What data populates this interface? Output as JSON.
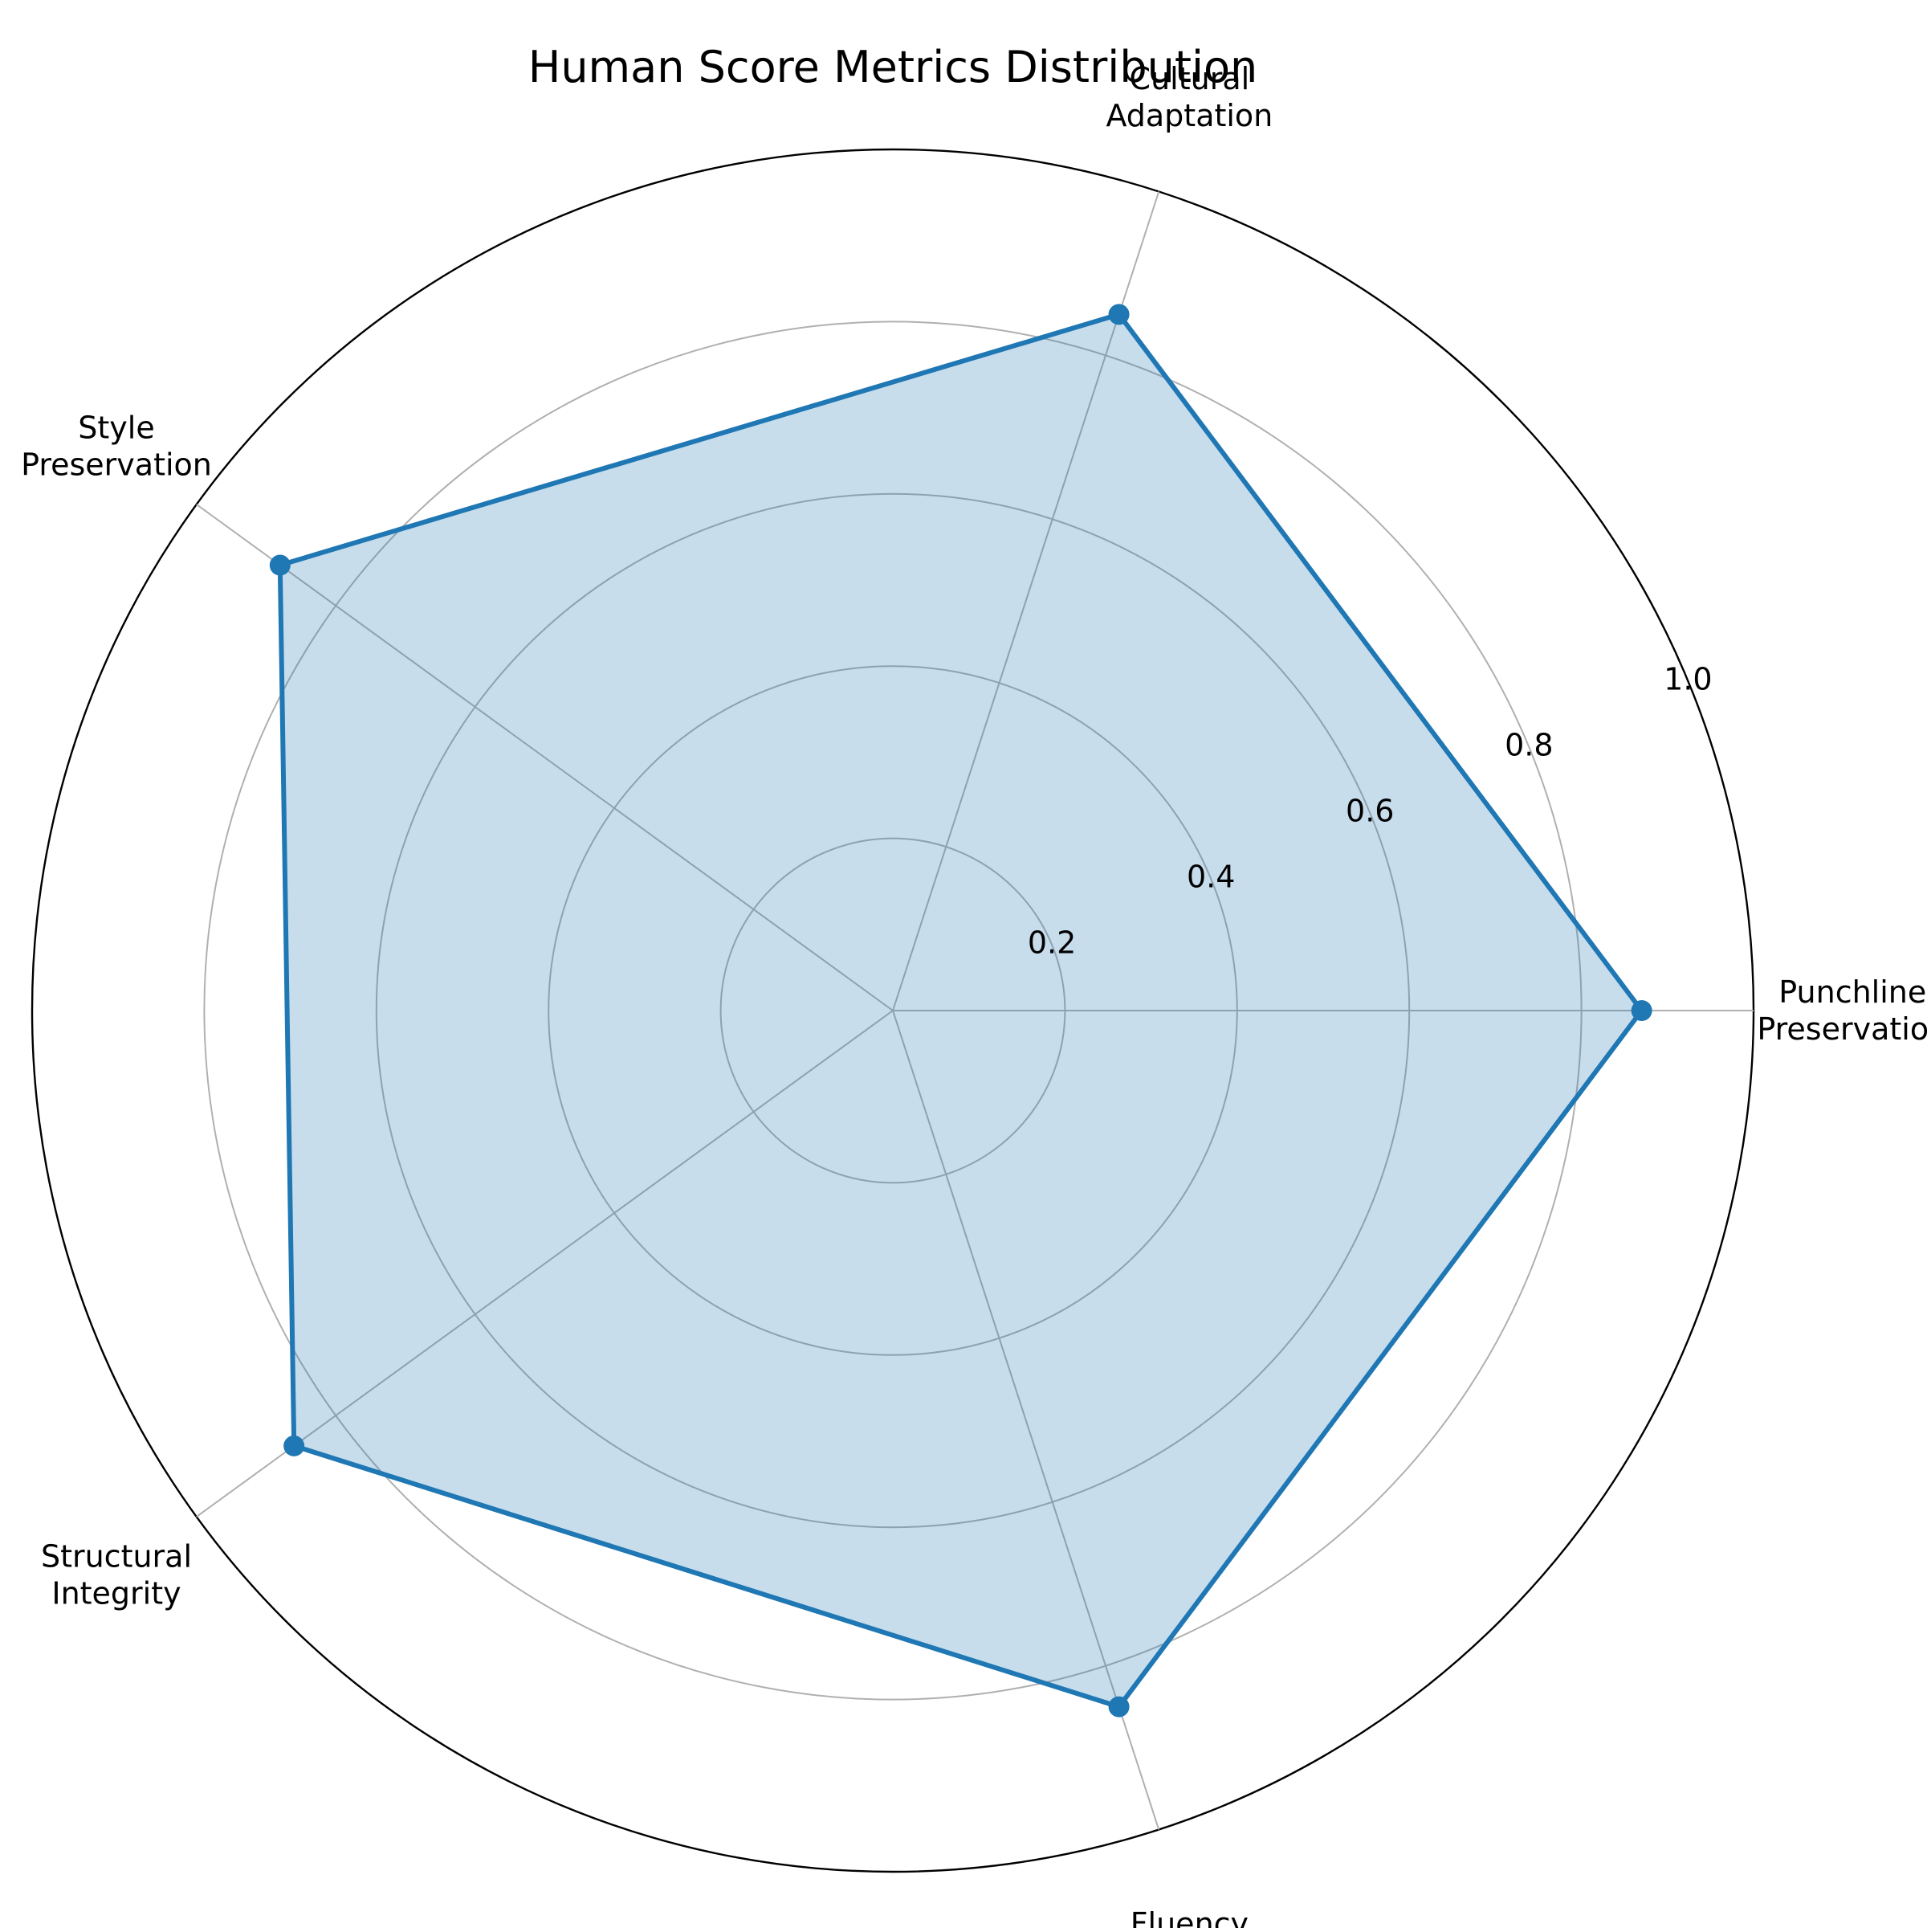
{
  "chart_data": {
    "type": "radar",
    "title": "Human Score Metrics Distribution",
    "categories": [
      [
        "Punchline",
        "Preservation"
      ],
      [
        "Cultural",
        "Adaptation"
      ],
      [
        "Style",
        "Preservation"
      ],
      [
        "Structural",
        "Integrity"
      ],
      [
        "Fluency"
      ]
    ],
    "series": [
      {
        "values": [
          0.87,
          0.85,
          0.88,
          0.86,
          0.85
        ]
      }
    ],
    "rlim": [
      0,
      1.0
    ],
    "rticks": [
      0.2,
      0.4,
      0.6,
      0.8,
      1.0
    ],
    "rtick_labels": [
      "0.2",
      "0.4",
      "0.6",
      "0.8",
      "1.0"
    ],
    "grid": true,
    "colors": {
      "line": "#1f77b4",
      "fill": "#1f77b4",
      "grid": "#b0b0b0",
      "frame": "#000000"
    }
  }
}
